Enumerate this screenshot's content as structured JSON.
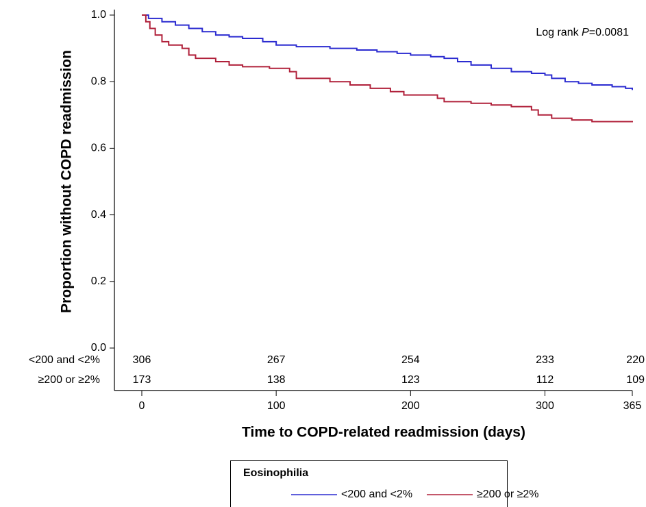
{
  "chart_data": {
    "type": "step",
    "y_label": "Proportion without COPD readmission",
    "x_label": "Time to COPD-related readmission (days)",
    "annotation": {
      "prefix": "Log rank ",
      "italic": "P",
      "suffix": "=0.0081"
    },
    "xlim": [
      0,
      365
    ],
    "ylim": [
      0,
      1
    ],
    "xticks": [
      0,
      100,
      200,
      300,
      365
    ],
    "yticks": [
      {
        "value": 0,
        "label": "0.0"
      },
      {
        "value": 0.2,
        "label": "0.2"
      },
      {
        "value": 0.4,
        "label": "0.4"
      },
      {
        "value": 0.6,
        "label": "0.6"
      },
      {
        "value": 0.8,
        "label": "0.8"
      },
      {
        "value": 1,
        "label": "1.0"
      }
    ],
    "legend_title": "Eosinophilia",
    "series": [
      {
        "name": "<200 and <2%",
        "color": "#2b2bd0",
        "x": [
          0,
          5,
          15,
          25,
          35,
          45,
          55,
          65,
          75,
          90,
          100,
          115,
          140,
          160,
          175,
          190,
          200,
          215,
          225,
          235,
          245,
          260,
          275,
          290,
          300,
          305,
          315,
          325,
          335,
          350,
          360,
          365
        ],
        "values": [
          1.0,
          0.99,
          0.98,
          0.97,
          0.96,
          0.95,
          0.94,
          0.935,
          0.93,
          0.92,
          0.91,
          0.905,
          0.9,
          0.895,
          0.89,
          0.885,
          0.88,
          0.875,
          0.87,
          0.86,
          0.85,
          0.84,
          0.83,
          0.825,
          0.82,
          0.81,
          0.8,
          0.795,
          0.79,
          0.785,
          0.78,
          0.775
        ],
        "at_risk": [
          306,
          267,
          254,
          233,
          220
        ]
      },
      {
        "name": "≥200 or ≥2%",
        "color": "#b0203a",
        "x": [
          0,
          3,
          6,
          10,
          15,
          20,
          30,
          35,
          40,
          55,
          65,
          75,
          95,
          110,
          115,
          140,
          155,
          170,
          185,
          195,
          220,
          225,
          245,
          260,
          275,
          290,
          295,
          305,
          320,
          335,
          365
        ],
        "values": [
          1.0,
          0.98,
          0.96,
          0.94,
          0.92,
          0.91,
          0.9,
          0.88,
          0.87,
          0.86,
          0.85,
          0.845,
          0.84,
          0.83,
          0.81,
          0.8,
          0.79,
          0.78,
          0.77,
          0.76,
          0.75,
          0.74,
          0.735,
          0.73,
          0.725,
          0.715,
          0.7,
          0.69,
          0.685,
          0.68,
          0.678
        ],
        "at_risk": [
          173,
          138,
          123,
          112,
          109
        ]
      }
    ]
  }
}
